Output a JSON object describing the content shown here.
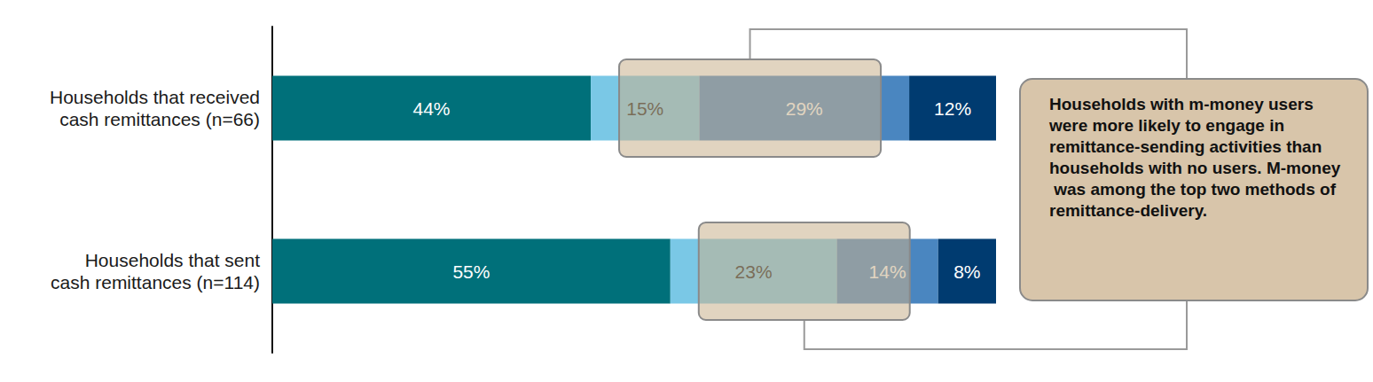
{
  "chart_data": {
    "type": "bar",
    "orientation": "horizontal",
    "stacked": true,
    "data_labels": true,
    "grid": false,
    "tick_labels": "y",
    "categories": [
      "Households that received\ncash remittances (n=66)",
      "Households that sent\ncash remittances (n=114)"
    ],
    "xlim": [
      0,
      100
    ],
    "series": [
      {
        "color": "#00707a",
        "values": [
          44,
          55
        ],
        "value_labels": [
          "44%",
          "55%"
        ]
      },
      {
        "color": "#7ac8e6",
        "values": [
          15,
          23
        ],
        "value_labels": [
          "15%",
          "23%"
        ]
      },
      {
        "color": "#4a86c0",
        "values": [
          29,
          14
        ],
        "value_labels": [
          "29%",
          "14%"
        ]
      },
      {
        "color": "#003b70",
        "values": [
          12,
          8
        ],
        "value_labels": [
          "12%",
          "8%"
        ]
      }
    ],
    "annotation": "Households with m-money users were more likely to engage in remittance-sending activities than households with no users. M-money was among the top two methods of remittance-delivery."
  }
}
